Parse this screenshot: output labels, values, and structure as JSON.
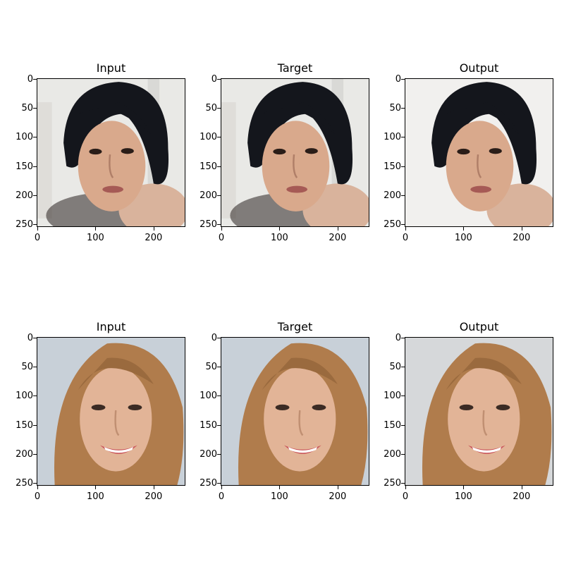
{
  "rows": [
    {
      "panels": [
        {
          "title": "Input",
          "image": "face-portrait-dark-hair"
        },
        {
          "title": "Target",
          "image": "face-portrait-dark-hair"
        },
        {
          "title": "Output",
          "image": "face-portrait-dark-hair-generated"
        }
      ]
    },
    {
      "panels": [
        {
          "title": "Input",
          "image": "face-portrait-blonde-smiling"
        },
        {
          "title": "Target",
          "image": "face-portrait-blonde-smiling"
        },
        {
          "title": "Output",
          "image": "face-portrait-blonde-smiling-generated"
        }
      ]
    }
  ],
  "axes": {
    "yticks": [
      "0",
      "50",
      "100",
      "150",
      "200",
      "250"
    ],
    "xticks": [
      "0",
      "100",
      "200"
    ]
  },
  "colors": {
    "dark_hair": "#14161c",
    "skin_warm": "#d9a98c",
    "bg_light": "#e9e9e6",
    "blonde_hair": "#b07c4c",
    "skin_blonde": "#e2b497",
    "bg_blue": "#c8d0d8"
  }
}
